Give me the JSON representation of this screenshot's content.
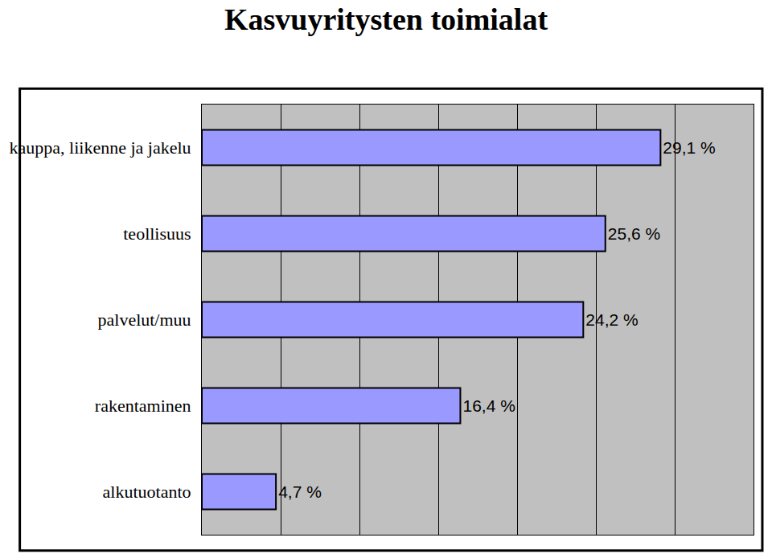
{
  "chart_data": {
    "type": "bar",
    "title": "Kasvuyritysten toimialat",
    "orientation": "horizontal",
    "categories": [
      "kauppa, liikenne ja jakelu",
      "teollisuus",
      "palvelut/muu",
      "rakentaminen",
      "alkutuotanto"
    ],
    "values": [
      29.1,
      25.6,
      24.2,
      16.4,
      4.7
    ],
    "value_labels": [
      "29,1 %",
      "25,6 %",
      "24,2 %",
      "16,4 %",
      "4,7 %"
    ],
    "color": "#9999ff",
    "xlim": [
      0,
      35
    ],
    "xticks": [
      0,
      5,
      10,
      15,
      20,
      25,
      30,
      35
    ],
    "grid": true,
    "data_labels": true,
    "tick_labels": "y"
  }
}
